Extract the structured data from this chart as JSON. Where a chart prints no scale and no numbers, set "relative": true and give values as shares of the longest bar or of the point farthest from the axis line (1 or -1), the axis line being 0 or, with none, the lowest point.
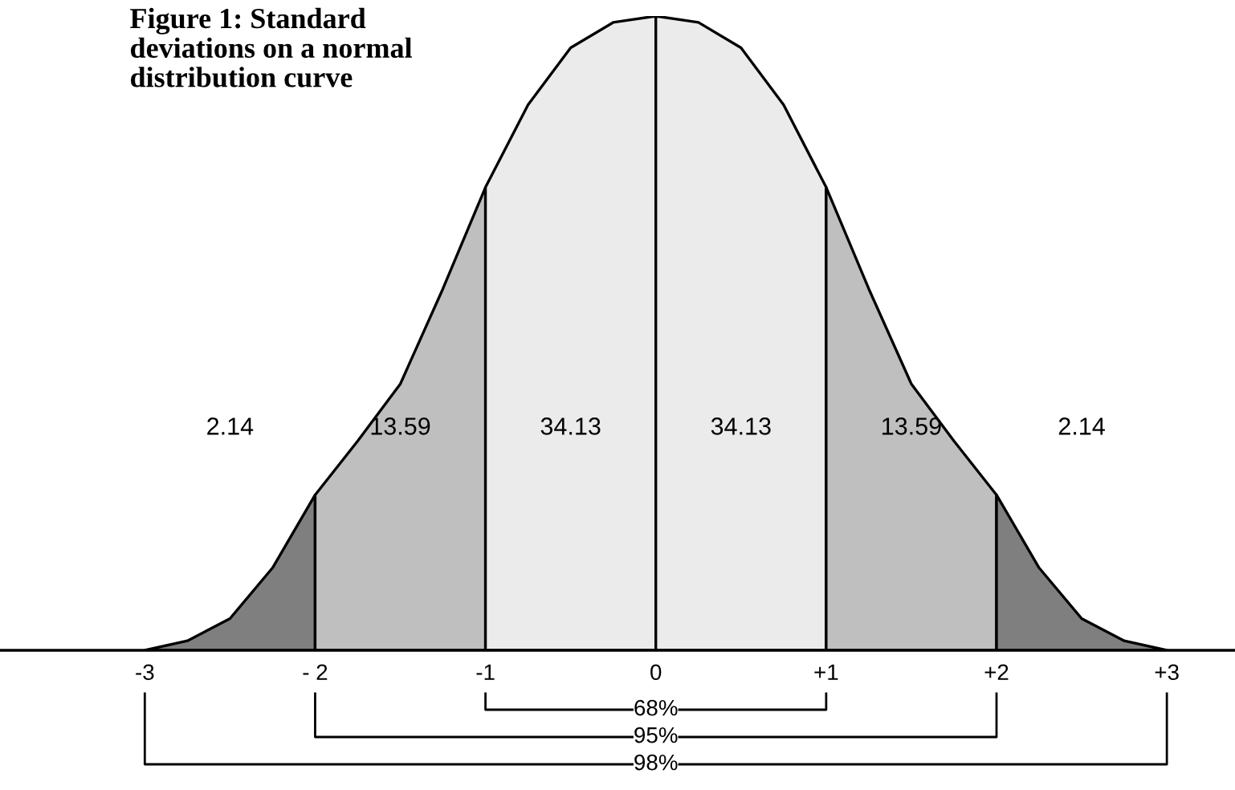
{
  "chart_data": {
    "type": "area",
    "relative": true,
    "title": "Figure 1: Standard deviations on a normal distribution curve",
    "xlim": [
      -3.85,
      3.4
    ],
    "xticks": [
      {
        "value": -3,
        "label": "-3"
      },
      {
        "value": -2,
        "label": "- 2"
      },
      {
        "value": -1,
        "label": "-1"
      },
      0,
      {
        "value": 1,
        "label": "+1"
      },
      {
        "value": 2,
        "label": "+2"
      },
      {
        "value": 3,
        "label": "+3"
      }
    ],
    "series": [
      {
        "color": "#7f7f7f",
        "x": [
          -3,
          -2.75,
          -2.5,
          -2.25,
          -2
        ],
        "values": [
          0,
          0.015,
          0.05,
          0.13,
          0.245
        ]
      },
      {
        "color": "#bfbfbf",
        "x": [
          -2,
          -1.75,
          -1.5,
          -1.25,
          -1
        ],
        "values": [
          0.245,
          0.33,
          0.42,
          0.57,
          0.73
        ]
      },
      {
        "color": "#ebebeb",
        "x": [
          -1,
          -0.75,
          -0.5,
          -0.25,
          0
        ],
        "values": [
          0.73,
          0.86,
          0.95,
          0.99,
          1
        ]
      },
      {
        "color": "#ebebeb",
        "x": [
          0,
          0.25,
          0.5,
          0.75,
          1
        ],
        "values": [
          1,
          0.99,
          0.95,
          0.86,
          0.73
        ]
      },
      {
        "color": "#bfbfbf",
        "x": [
          1,
          1.25,
          1.5,
          1.75,
          2
        ],
        "values": [
          0.73,
          0.57,
          0.42,
          0.33,
          0.245
        ]
      },
      {
        "color": "#7f7f7f",
        "x": [
          2,
          2.25,
          2.5,
          2.75,
          3
        ],
        "values": [
          0.245,
          0.13,
          0.05,
          0.015,
          0
        ]
      }
    ],
    "annotations": [
      "2.14",
      "13.59",
      "34.13",
      "34.13",
      "13.59",
      "2.14",
      "68%",
      "95%",
      "98%"
    ]
  }
}
